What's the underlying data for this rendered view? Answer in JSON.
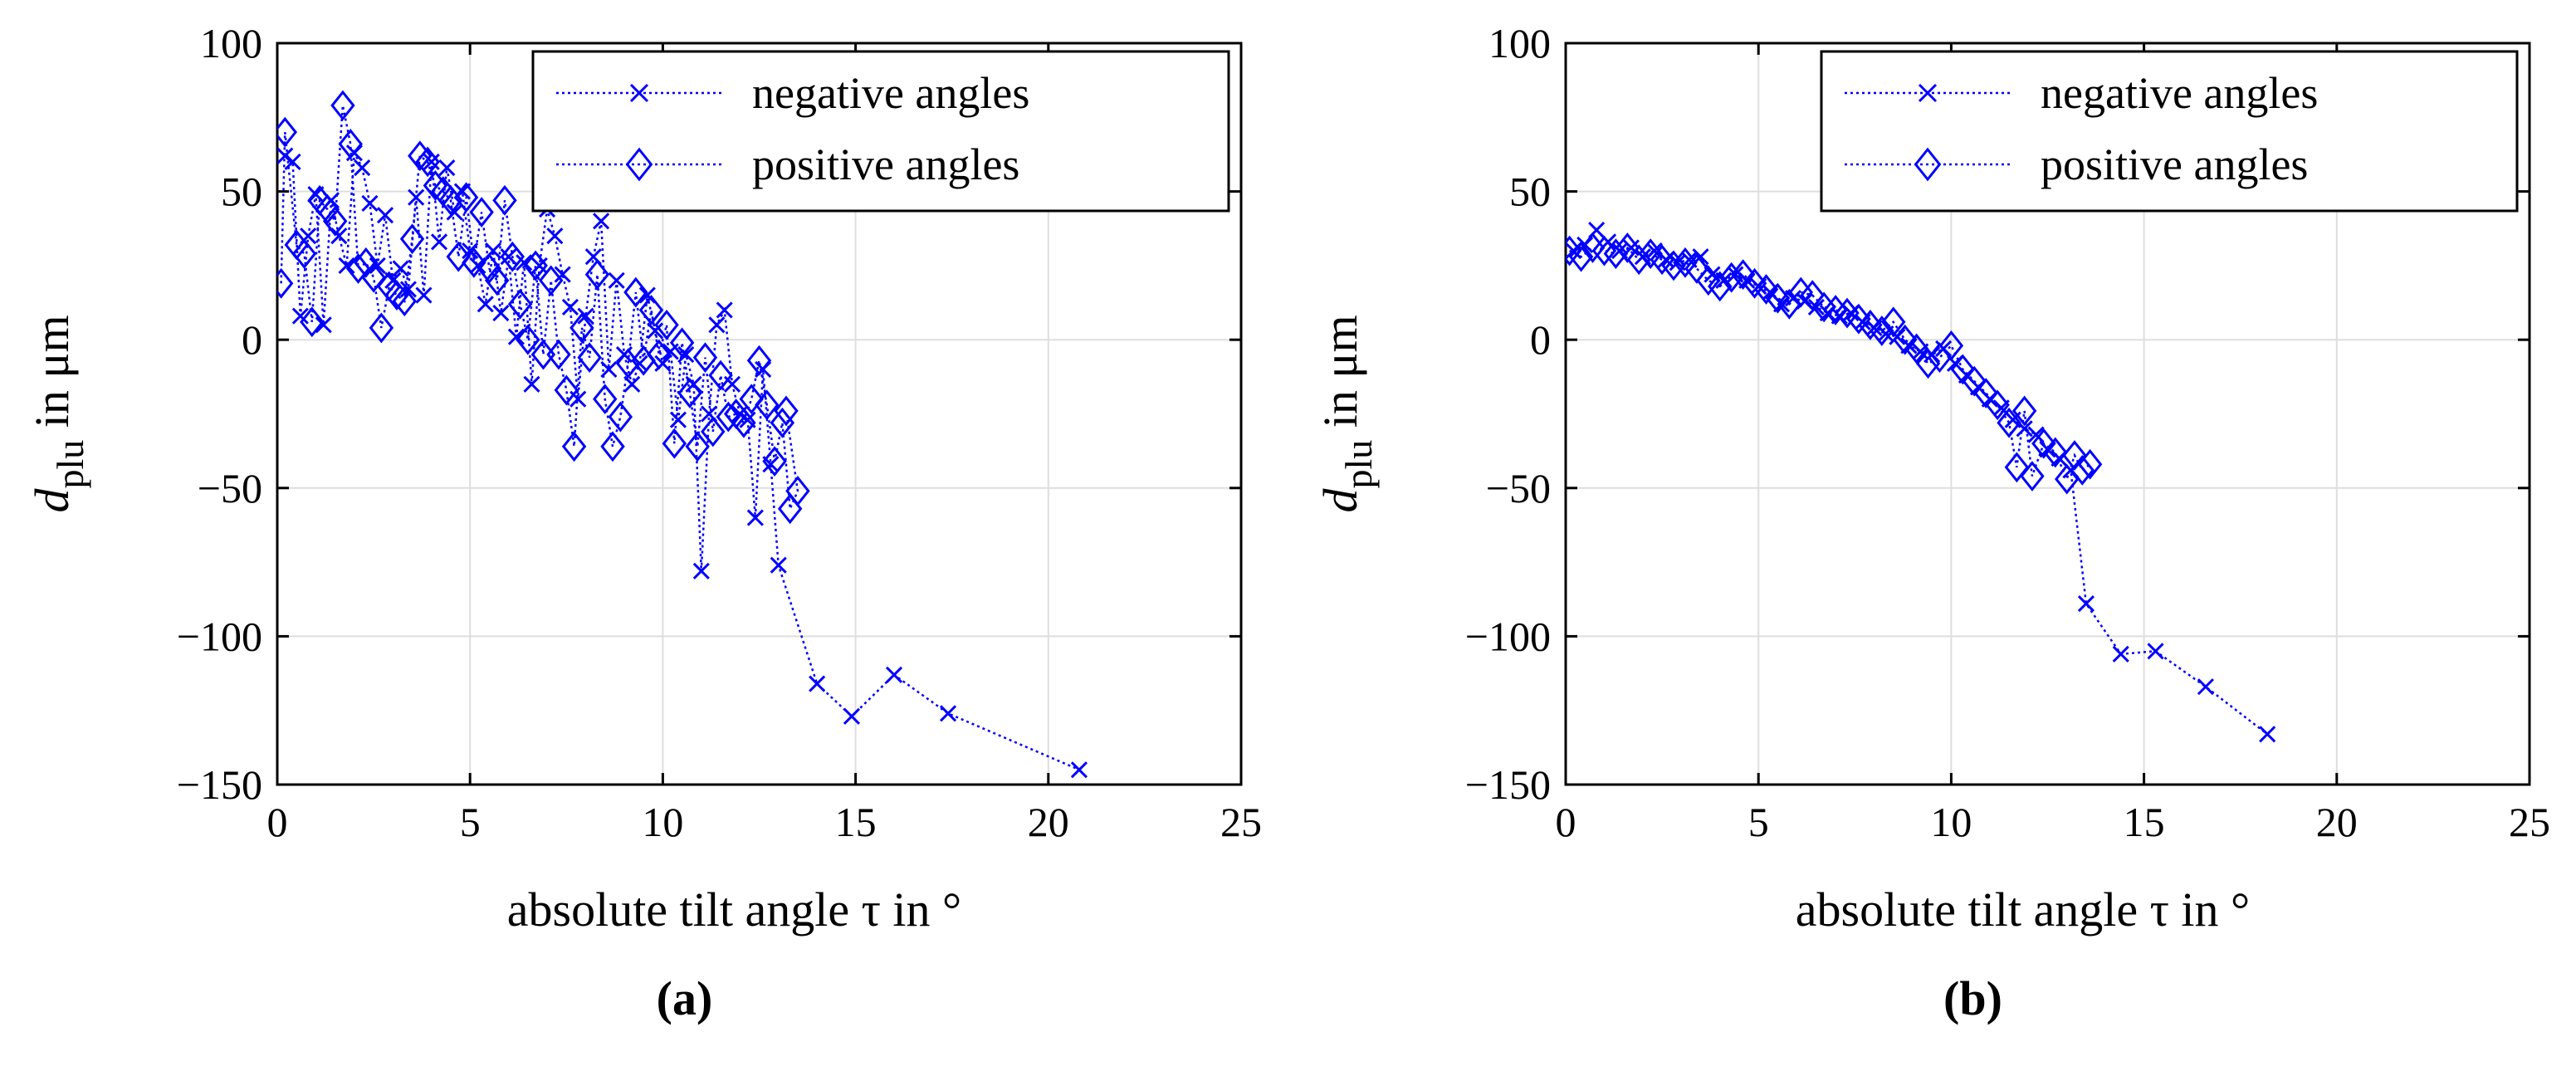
{
  "chart_data": [
    {
      "type": "line",
      "panel_label": "(a)",
      "xlabel": "absolute tilt angle τ in °",
      "ylabel_main": "d",
      "ylabel_sub": "plu",
      "ylabel_rest": " in μm",
      "xlim": [
        0,
        25
      ],
      "ylim": [
        -150,
        100
      ],
      "xticks": [
        0,
        5,
        10,
        15,
        20,
        25
      ],
      "xtick_labels": [
        "0",
        "5",
        "10",
        "15",
        "20",
        "25"
      ],
      "yticks": [
        100,
        50,
        0,
        -50,
        -100,
        -150
      ],
      "ytick_labels": [
        "100",
        "50",
        "0",
        "−50",
        "−100",
        "−150"
      ],
      "grid": true,
      "legend_position": "top-right",
      "color": "#0000ff",
      "series": [
        {
          "name": "negative angles",
          "marker": "x",
          "points": [
            [
              0.2,
              62
            ],
            [
              0.4,
              60
            ],
            [
              0.6,
              8
            ],
            [
              0.8,
              35
            ],
            [
              1.0,
              49
            ],
            [
              1.2,
              5
            ],
            [
              1.4,
              47
            ],
            [
              1.6,
              35
            ],
            [
              1.8,
              25
            ],
            [
              2.0,
              63
            ],
            [
              2.2,
              58
            ],
            [
              2.4,
              46
            ],
            [
              2.6,
              25
            ],
            [
              2.8,
              42
            ],
            [
              3.0,
              20
            ],
            [
              3.2,
              24
            ],
            [
              3.4,
              17
            ],
            [
              3.6,
              48
            ],
            [
              3.8,
              15
            ],
            [
              4.0,
              60
            ],
            [
              4.2,
              33
            ],
            [
              4.4,
              58
            ],
            [
              4.6,
              43
            ],
            [
              4.8,
              50
            ],
            [
              5.0,
              30
            ],
            [
              5.2,
              25
            ],
            [
              5.4,
              12
            ],
            [
              5.6,
              30
            ],
            [
              5.8,
              9
            ],
            [
              6.0,
              28
            ],
            [
              6.2,
              1
            ],
            [
              6.4,
              26
            ],
            [
              6.6,
              -15
            ],
            [
              6.8,
              25
            ],
            [
              7.0,
              44
            ],
            [
              7.2,
              35
            ],
            [
              7.4,
              22
            ],
            [
              7.6,
              11
            ],
            [
              7.8,
              -20
            ],
            [
              8.0,
              8
            ],
            [
              8.2,
              28
            ],
            [
              8.4,
              40
            ],
            [
              8.6,
              -10
            ],
            [
              8.8,
              20
            ],
            [
              9.0,
              -5
            ],
            [
              9.2,
              -15
            ],
            [
              9.4,
              -8
            ],
            [
              9.6,
              15
            ],
            [
              9.8,
              3
            ],
            [
              10.0,
              -8
            ],
            [
              10.2,
              -4
            ],
            [
              10.4,
              -27
            ],
            [
              10.6,
              -5
            ],
            [
              10.8,
              -15
            ],
            [
              11.0,
              -78
            ],
            [
              11.2,
              -25
            ],
            [
              11.4,
              5
            ],
            [
              11.6,
              10
            ],
            [
              11.8,
              -15
            ],
            [
              12.0,
              -25
            ],
            [
              12.2,
              -27
            ],
            [
              12.4,
              -60
            ],
            [
              12.6,
              -10
            ],
            [
              12.8,
              -42
            ],
            [
              13.0,
              -76
            ],
            [
              14.0,
              -116
            ],
            [
              14.9,
              -127
            ],
            [
              16.0,
              -113
            ],
            [
              17.4,
              -126
            ],
            [
              20.8,
              -145
            ]
          ]
        },
        {
          "name": "positive angles",
          "marker": "diamond",
          "points": [
            [
              0.1,
              19
            ],
            [
              0.2,
              70
            ],
            [
              0.5,
              32
            ],
            [
              0.7,
              29
            ],
            [
              0.9,
              6
            ],
            [
              1.1,
              47
            ],
            [
              1.3,
              44
            ],
            [
              1.5,
              40
            ],
            [
              1.7,
              79
            ],
            [
              1.9,
              66
            ],
            [
              2.1,
              24
            ],
            [
              2.3,
              26
            ],
            [
              2.5,
              21
            ],
            [
              2.7,
              4
            ],
            [
              2.9,
              18
            ],
            [
              3.1,
              15
            ],
            [
              3.3,
              13
            ],
            [
              3.5,
              34
            ],
            [
              3.7,
              62
            ],
            [
              3.9,
              60
            ],
            [
              4.1,
              52
            ],
            [
              4.3,
              50
            ],
            [
              4.5,
              47
            ],
            [
              4.7,
              28
            ],
            [
              4.9,
              48
            ],
            [
              5.1,
              26
            ],
            [
              5.3,
              43
            ],
            [
              5.5,
              24
            ],
            [
              5.7,
              20
            ],
            [
              5.9,
              47
            ],
            [
              6.1,
              28
            ],
            [
              6.3,
              12
            ],
            [
              6.5,
              0
            ],
            [
              6.7,
              25
            ],
            [
              6.9,
              -5
            ],
            [
              7.1,
              20
            ],
            [
              7.3,
              -5
            ],
            [
              7.5,
              -17
            ],
            [
              7.7,
              -36
            ],
            [
              7.9,
              4
            ],
            [
              8.1,
              -6
            ],
            [
              8.3,
              22
            ],
            [
              8.5,
              -20
            ],
            [
              8.7,
              -36
            ],
            [
              8.9,
              -26
            ],
            [
              9.1,
              -8
            ],
            [
              9.3,
              16
            ],
            [
              9.5,
              -7
            ],
            [
              9.7,
              10
            ],
            [
              9.9,
              -5
            ],
            [
              10.1,
              5
            ],
            [
              10.3,
              -35
            ],
            [
              10.5,
              -1
            ],
            [
              10.7,
              -18
            ],
            [
              10.9,
              -36
            ],
            [
              11.1,
              -6
            ],
            [
              11.3,
              -31
            ],
            [
              11.5,
              -12
            ],
            [
              11.7,
              -26
            ],
            [
              11.9,
              -25
            ],
            [
              12.1,
              -28
            ],
            [
              12.3,
              -20
            ],
            [
              12.5,
              -7
            ],
            [
              12.7,
              -22
            ],
            [
              12.9,
              -41
            ],
            [
              13.1,
              -28
            ],
            [
              13.3,
              -57
            ],
            [
              13.5,
              -51
            ],
            [
              13.2,
              -24
            ]
          ]
        }
      ]
    },
    {
      "type": "line",
      "panel_label": "(b)",
      "xlabel": "absolute tilt angle τ in °",
      "ylabel_main": "d",
      "ylabel_sub": "plu",
      "ylabel_rest": " in μm",
      "xlim": [
        0,
        25
      ],
      "ylim": [
        -150,
        100
      ],
      "xticks": [
        0,
        5,
        10,
        15,
        20,
        25
      ],
      "xtick_labels": [
        "0",
        "5",
        "10",
        "15",
        "20",
        "25"
      ],
      "yticks": [
        100,
        50,
        0,
        -50,
        -100,
        -150
      ],
      "ytick_labels": [
        "100",
        "50",
        "0",
        "−50",
        "−100",
        "−150"
      ],
      "grid": true,
      "legend_position": "top-right",
      "color": "#0000ff",
      "series": [
        {
          "name": "negative angles",
          "marker": "x",
          "points": [
            [
              0.2,
              30
            ],
            [
              0.5,
              32
            ],
            [
              0.8,
              37
            ],
            [
              1.1,
              33
            ],
            [
              1.4,
              30
            ],
            [
              1.7,
              31
            ],
            [
              2.0,
              28
            ],
            [
              2.3,
              30
            ],
            [
              2.6,
              27
            ],
            [
              2.9,
              26
            ],
            [
              3.2,
              27
            ],
            [
              3.5,
              28
            ],
            [
              3.8,
              22
            ],
            [
              4.1,
              20
            ],
            [
              4.4,
              22
            ],
            [
              4.7,
              20
            ],
            [
              5.0,
              18
            ],
            [
              5.3,
              16
            ],
            [
              5.6,
              12
            ],
            [
              5.9,
              14
            ],
            [
              6.2,
              13
            ],
            [
              6.5,
              11
            ],
            [
              6.8,
              9
            ],
            [
              7.1,
              8
            ],
            [
              7.4,
              9
            ],
            [
              7.7,
              6
            ],
            [
              8.0,
              4
            ],
            [
              8.3,
              2
            ],
            [
              8.6,
              1
            ],
            [
              8.9,
              -2
            ],
            [
              9.2,
              -4
            ],
            [
              9.5,
              -5
            ],
            [
              9.8,
              -3
            ],
            [
              10.1,
              -8
            ],
            [
              10.4,
              -12
            ],
            [
              10.7,
              -16
            ],
            [
              11.0,
              -20
            ],
            [
              11.3,
              -23
            ],
            [
              11.6,
              -27
            ],
            [
              11.9,
              -30
            ],
            [
              12.2,
              -32
            ],
            [
              12.5,
              -37
            ],
            [
              12.8,
              -40
            ],
            [
              13.1,
              -44
            ],
            [
              13.5,
              -89
            ],
            [
              14.4,
              -106
            ],
            [
              15.3,
              -105
            ],
            [
              16.6,
              -117
            ],
            [
              18.2,
              -133
            ]
          ]
        },
        {
          "name": "positive angles",
          "marker": "diamond",
          "points": [
            [
              0.1,
              30
            ],
            [
              0.4,
              28
            ],
            [
              0.7,
              31
            ],
            [
              1.0,
              30
            ],
            [
              1.3,
              29
            ],
            [
              1.6,
              31
            ],
            [
              1.9,
              27
            ],
            [
              2.2,
              29
            ],
            [
              2.5,
              27
            ],
            [
              2.8,
              25
            ],
            [
              3.1,
              26
            ],
            [
              3.4,
              24
            ],
            [
              3.7,
              20
            ],
            [
              4.0,
              18
            ],
            [
              4.3,
              21
            ],
            [
              4.6,
              22
            ],
            [
              4.9,
              19
            ],
            [
              5.2,
              17
            ],
            [
              5.5,
              14
            ],
            [
              5.8,
              12
            ],
            [
              6.1,
              16
            ],
            [
              6.4,
              15
            ],
            [
              6.7,
              11
            ],
            [
              7.0,
              10
            ],
            [
              7.3,
              9
            ],
            [
              7.6,
              7
            ],
            [
              7.9,
              5
            ],
            [
              8.2,
              3
            ],
            [
              8.5,
              6
            ],
            [
              8.8,
              0
            ],
            [
              9.1,
              -3
            ],
            [
              9.4,
              -8
            ],
            [
              9.7,
              -6
            ],
            [
              10.0,
              -2
            ],
            [
              10.3,
              -10
            ],
            [
              10.6,
              -14
            ],
            [
              10.9,
              -18
            ],
            [
              11.2,
              -22
            ],
            [
              11.5,
              -28
            ],
            [
              11.7,
              -43
            ],
            [
              11.9,
              -24
            ],
            [
              12.1,
              -46
            ],
            [
              12.4,
              -35
            ],
            [
              12.7,
              -38
            ],
            [
              13.0,
              -47
            ],
            [
              13.2,
              -39
            ],
            [
              13.4,
              -44
            ],
            [
              13.6,
              -42
            ]
          ]
        }
      ]
    }
  ]
}
